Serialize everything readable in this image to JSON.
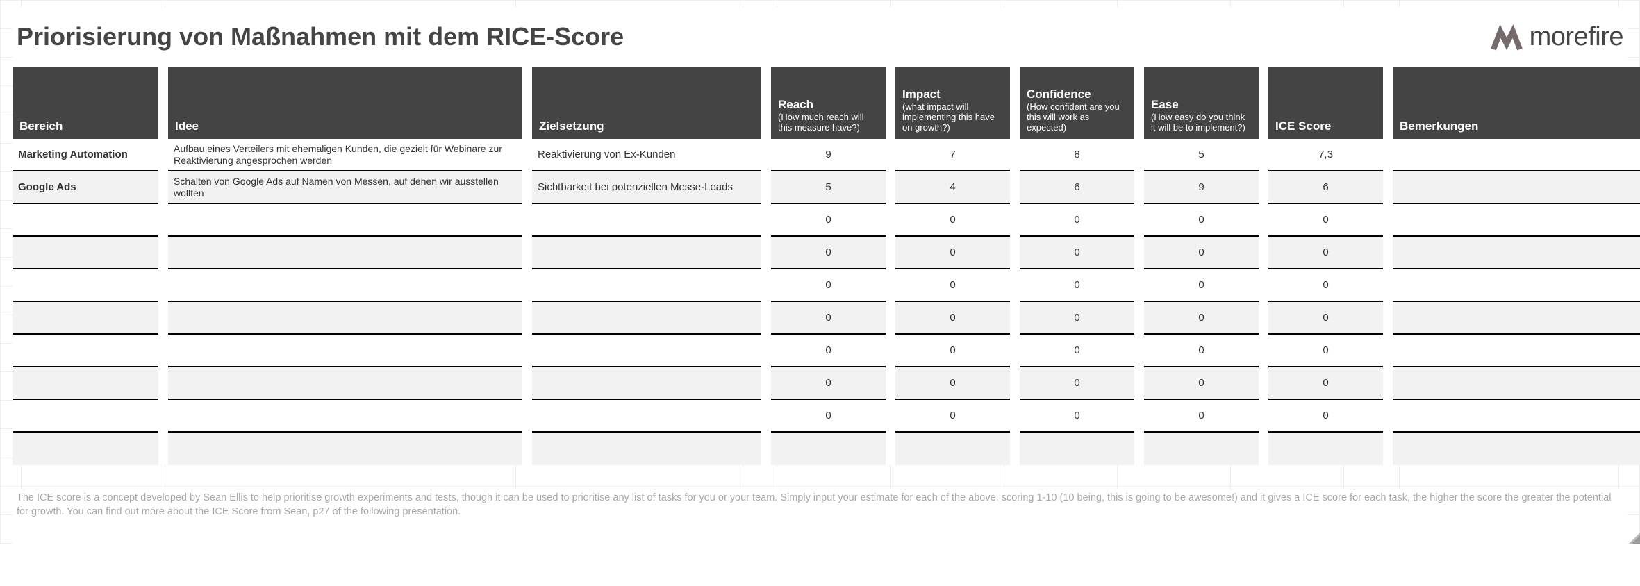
{
  "title": "Priorisierung von Maßnahmen mit dem RICE-Score",
  "logo_text": "morefire",
  "colors": {
    "header_bg": "#444444",
    "header_text": "#ffffff",
    "row_alt_bg": "#f2f2f2",
    "row_bg": "#ffffff",
    "border": "#000000",
    "grid_faint": "#ededed",
    "title_color": "#454545",
    "footer_text": "#a9a9a9",
    "logo_stroke": "#756a6a"
  },
  "headers": {
    "bereich": {
      "label": "Bereich",
      "sub": ""
    },
    "idee": {
      "label": "Idee",
      "sub": ""
    },
    "ziel": {
      "label": "Zielsetzung",
      "sub": ""
    },
    "reach": {
      "label": "Reach",
      "sub": "(How much reach will this measure have?)"
    },
    "impact": {
      "label": "Impact",
      "sub": "(what impact will implementing this have on growth?)"
    },
    "confidence": {
      "label": "Confidence",
      "sub": "(How confident are you this will work as expected)"
    },
    "ease": {
      "label": "Ease",
      "sub": "(How easy do you think it will be to implement?)"
    },
    "score": {
      "label": "ICE Score",
      "sub": ""
    },
    "bemerkungen": {
      "label": "Bemerkungen",
      "sub": ""
    }
  },
  "rows": [
    {
      "bereich": "Marketing Automation",
      "idee": "Aufbau eines Verteilers mit ehemaligen Kunden, die gezielt für Webinare zur Reaktivierung angesprochen werden",
      "ziel": "Reaktivierung von Ex-Kunden",
      "reach": "9",
      "impact": "7",
      "confidence": "8",
      "ease": "5",
      "score": "7,3",
      "bemerkungen": ""
    },
    {
      "bereich": "Google Ads",
      "idee": "Schalten von Google Ads auf Namen von Messen, auf denen wir ausstellen wollten",
      "ziel": "Sichtbarkeit bei potenziellen Messe-Leads",
      "reach": "5",
      "impact": "4",
      "confidence": "6",
      "ease": "9",
      "score": "6",
      "bemerkungen": ""
    },
    {
      "bereich": "",
      "idee": "",
      "ziel": "",
      "reach": "0",
      "impact": "0",
      "confidence": "0",
      "ease": "0",
      "score": "0",
      "bemerkungen": ""
    },
    {
      "bereich": "",
      "idee": "",
      "ziel": "",
      "reach": "0",
      "impact": "0",
      "confidence": "0",
      "ease": "0",
      "score": "0",
      "bemerkungen": ""
    },
    {
      "bereich": "",
      "idee": "",
      "ziel": "",
      "reach": "0",
      "impact": "0",
      "confidence": "0",
      "ease": "0",
      "score": "0",
      "bemerkungen": ""
    },
    {
      "bereich": "",
      "idee": "",
      "ziel": "",
      "reach": "0",
      "impact": "0",
      "confidence": "0",
      "ease": "0",
      "score": "0",
      "bemerkungen": ""
    },
    {
      "bereich": "",
      "idee": "",
      "ziel": "",
      "reach": "0",
      "impact": "0",
      "confidence": "0",
      "ease": "0",
      "score": "0",
      "bemerkungen": ""
    },
    {
      "bereich": "",
      "idee": "",
      "ziel": "",
      "reach": "0",
      "impact": "0",
      "confidence": "0",
      "ease": "0",
      "score": "0",
      "bemerkungen": ""
    },
    {
      "bereich": "",
      "idee": "",
      "ziel": "",
      "reach": "0",
      "impact": "0",
      "confidence": "0",
      "ease": "0",
      "score": "0",
      "bemerkungen": ""
    },
    {
      "bereich": "",
      "idee": "",
      "ziel": "",
      "reach": "",
      "impact": "",
      "confidence": "",
      "ease": "",
      "score": "",
      "bemerkungen": ""
    }
  ],
  "footer": "The ICE score is a concept developed by Sean Ellis to help prioritise growth experiments and tests, though it can be used to prioritise any list of tasks for you or your team. Simply input your estimate for each of the above, scoring 1-10 (10 being, this is going to be awesome!) and it gives a ICE score for each task, the higher the score the greater the potential for growth. You can find out more about the ICE Score from Sean, p27 of the following presentation."
}
